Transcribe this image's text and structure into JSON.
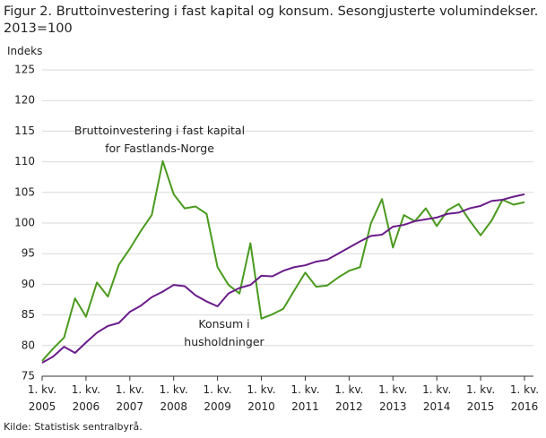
{
  "chart_data": {
    "type": "line",
    "title": "Figur 2. Bruttoinvestering i fast kapital og konsum. Sesongjusterte volumindekser. 2013=100",
    "y_label": "Indeks",
    "source": "Kilde: Statistisk sentralbyrå.",
    "categories": [
      "1. kv.\n2005",
      null,
      null,
      null,
      "1. kv.\n2006",
      null,
      null,
      null,
      "1. kv.\n2007",
      null,
      null,
      null,
      "1. kv.\n2008",
      null,
      null,
      null,
      "1. kv.\n2009",
      null,
      null,
      null,
      "1. kv.\n2010",
      null,
      null,
      null,
      "1. kv.\n2011",
      null,
      null,
      null,
      "1. kv.\n2012",
      null,
      null,
      null,
      "1. kv.\n2013",
      null,
      null,
      null,
      "1. kv.\n2014",
      null,
      null,
      null,
      "1. kv.\n2015",
      null,
      null,
      null,
      "1. kv.\n2016"
    ],
    "series": [
      {
        "name": "Bruttoinvestering  i fast kapital\nfor Fastlands-Norge",
        "color": "#4a9a1e",
        "values": [
          77.5,
          79.5,
          81.3,
          87.7,
          84.7,
          90.3,
          88.0,
          93.2,
          95.8,
          98.7,
          101.3,
          110.1,
          104.7,
          102.4,
          102.7,
          101.5,
          92.8,
          89.9,
          88.5,
          96.7,
          84.4,
          85.1,
          86.0,
          89.0,
          91.9,
          89.6,
          89.8,
          91.1,
          92.2,
          92.8,
          100.0,
          103.9,
          96.0,
          101.3,
          100.3,
          102.4,
          99.5,
          102.1,
          103.1,
          100.4,
          98.0,
          100.4,
          103.8,
          103.0,
          103.4
        ]
      },
      {
        "name": "Konsum i\nhusholdninger",
        "color": "#6a1b8a",
        "values": [
          77.2,
          78.2,
          79.8,
          78.8,
          80.5,
          82.1,
          83.2,
          83.7,
          85.5,
          86.5,
          87.9,
          88.8,
          89.9,
          89.7,
          88.2,
          87.2,
          86.4,
          88.5,
          89.4,
          89.9,
          91.4,
          91.3,
          92.2,
          92.8,
          93.1,
          93.7,
          94.0,
          95.0,
          96.0,
          97.0,
          97.9,
          98.1,
          99.4,
          99.7,
          100.3,
          100.6,
          100.9,
          101.5,
          101.7,
          102.4,
          102.8,
          103.6,
          103.8,
          104.3,
          104.7
        ]
      }
    ],
    "ylim": [
      75,
      125
    ],
    "yticks": [
      75,
      80,
      85,
      90,
      95,
      100,
      105,
      110,
      115,
      120,
      125
    ],
    "grid": true
  }
}
